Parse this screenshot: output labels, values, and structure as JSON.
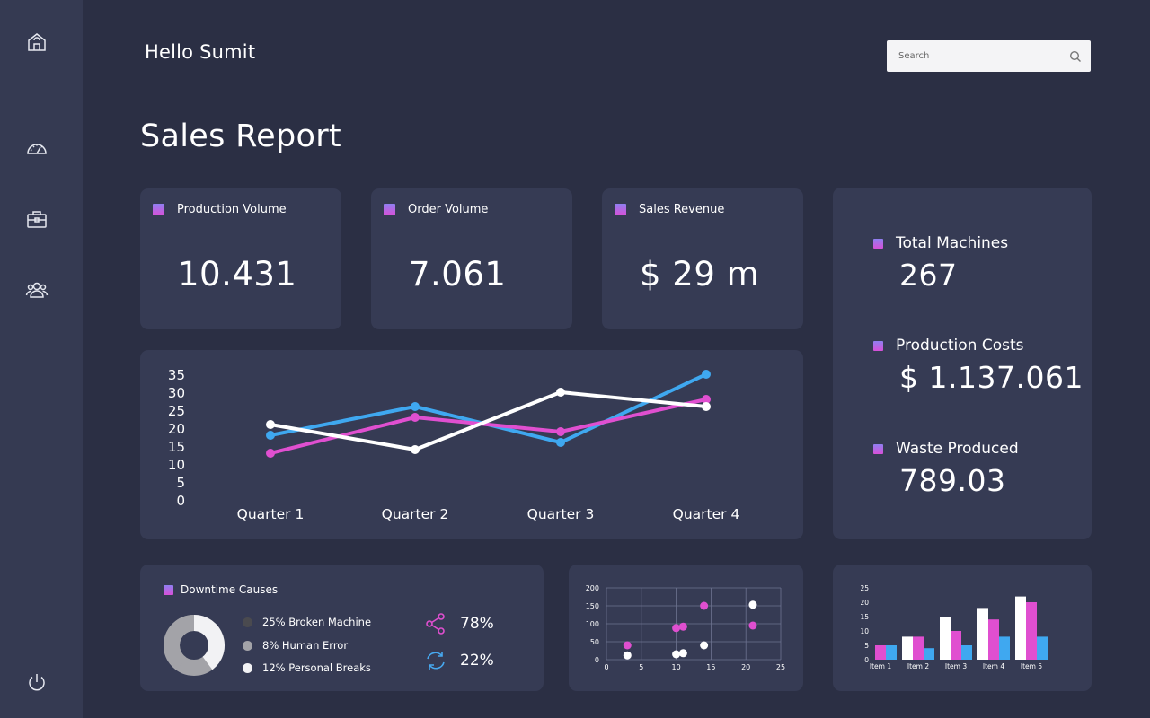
{
  "header": {
    "greeting": "Hello Sumit",
    "search_placeholder": "Search",
    "page_title": "Sales Report"
  },
  "sidebar": {
    "icons": [
      "home-icon",
      "dashboard-gauge-icon",
      "briefcase-icon",
      "users-icon",
      "power-icon"
    ]
  },
  "kpis": [
    {
      "label": "Production Volume",
      "value": "10.431"
    },
    {
      "label": "Order Volume",
      "value": "7.061"
    },
    {
      "label": "Sales Revenue",
      "value": "$ 29 m"
    }
  ],
  "side_stats": [
    {
      "label": "Total Machines",
      "value": "267"
    },
    {
      "label": "Production Costs",
      "value": "$ 1.137.061"
    },
    {
      "label": "Waste Produced",
      "value": "789.03"
    }
  ],
  "downtime": {
    "title": "Downtime Causes",
    "legend": [
      {
        "label": "25% Broken Machine",
        "color": "#4a4a4f"
      },
      {
        "label": "8% Human Error",
        "color": "#a3a3a8"
      },
      {
        "label": "12% Personal Breaks",
        "color": "#f2f2f4"
      }
    ],
    "stats": [
      {
        "icon": "share-icon",
        "value": "78%",
        "color": "#e04fd0"
      },
      {
        "icon": "refresh-icon",
        "value": "22%",
        "color": "#47a9f0"
      }
    ]
  },
  "colors": {
    "background": "#2b2f44",
    "card": "#363b54",
    "blue": "#3fa8f0",
    "magenta": "#e04fd0",
    "white": "#ffffff"
  },
  "chart_data": [
    {
      "type": "line",
      "categories": [
        "Quarter 1",
        "Quarter 2",
        "Quarter 3",
        "Quarter 4"
      ],
      "yticks": [
        0,
        5,
        10,
        15,
        20,
        25,
        30,
        35
      ],
      "ylim": [
        0,
        35
      ],
      "series": [
        {
          "color": "#3fa8f0",
          "values": [
            18,
            26,
            16,
            35
          ]
        },
        {
          "color": "#e04fd0",
          "values": [
            13,
            23,
            19,
            28
          ]
        },
        {
          "color": "#ffffff",
          "values": [
            21,
            14,
            30,
            26
          ]
        }
      ]
    },
    {
      "type": "scatter",
      "xticks": [
        0,
        5,
        10,
        15,
        20,
        25
      ],
      "yticks": [
        0,
        50,
        100,
        150,
        200
      ],
      "xlim": [
        0,
        25
      ],
      "ylim": [
        0,
        200
      ],
      "grid": true,
      "series": [
        {
          "color": "#e04fd0",
          "points": [
            [
              3,
              40
            ],
            [
              10,
              88
            ],
            [
              11,
              92
            ],
            [
              14,
              150
            ],
            [
              21,
              95
            ]
          ]
        },
        {
          "color": "#ffffff",
          "points": [
            [
              3,
              12
            ],
            [
              10,
              15
            ],
            [
              11,
              18
            ],
            [
              14,
              40
            ],
            [
              21,
              153
            ]
          ]
        }
      ]
    },
    {
      "type": "bar",
      "categories": [
        "Item 1",
        "Item 2",
        "Item 3",
        "Item 4",
        "Item 5"
      ],
      "yticks": [
        0,
        5,
        10,
        15,
        20,
        25
      ],
      "ylim": [
        0,
        25
      ],
      "series": [
        {
          "color": "#e04fd0",
          "values": [
            5,
            8,
            10,
            14,
            20
          ]
        },
        {
          "color": "#3fa8f0",
          "values": [
            5,
            4,
            5,
            8,
            8
          ]
        },
        {
          "color": "#ffffff",
          "values": [
            0,
            8,
            15,
            18,
            22
          ]
        }
      ]
    }
  ]
}
